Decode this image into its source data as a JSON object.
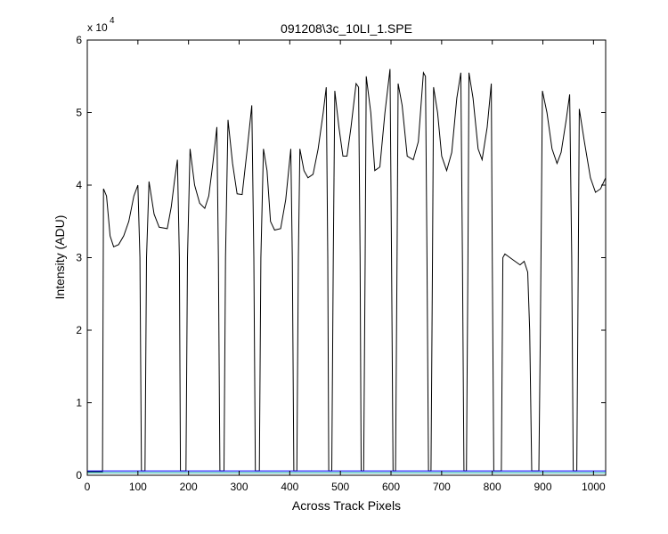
{
  "chart_data": {
    "type": "line",
    "title": "091208\\3c_10LI_1.SPE",
    "xlabel": "Across Track Pixels",
    "ylabel": "Intensity (ADU)",
    "xlim": [
      0,
      1024
    ],
    "ylim": [
      0,
      60000
    ],
    "x_ticks": [
      "0",
      "100",
      "200",
      "300",
      "400",
      "500",
      "600",
      "700",
      "800",
      "900",
      "1000"
    ],
    "y_ticks": [
      "0",
      "1",
      "2",
      "3",
      "4",
      "5",
      "6"
    ],
    "y_exponent": {
      "base": "x 10",
      "power": "4"
    },
    "grid": false,
    "legend": "none",
    "series": [
      {
        "color": "#000000",
        "points": [
          [
            0,
            500
          ],
          [
            30,
            500
          ],
          [
            32,
            39500
          ],
          [
            38,
            38500
          ],
          [
            45,
            33000
          ],
          [
            52,
            31500
          ],
          [
            62,
            31800
          ],
          [
            72,
            33000
          ],
          [
            82,
            35000
          ],
          [
            92,
            38500
          ],
          [
            100,
            40000
          ],
          [
            104,
            30000
          ],
          [
            107,
            600
          ],
          [
            114,
            600
          ],
          [
            117,
            30000
          ],
          [
            122,
            40500
          ],
          [
            132,
            36000
          ],
          [
            142,
            34200
          ],
          [
            158,
            34000
          ],
          [
            166,
            37000
          ],
          [
            172,
            40500
          ],
          [
            178,
            43500
          ],
          [
            182,
            30000
          ],
          [
            184,
            600
          ],
          [
            195,
            600
          ],
          [
            198,
            30000
          ],
          [
            203,
            45000
          ],
          [
            212,
            40000
          ],
          [
            222,
            37500
          ],
          [
            232,
            36800
          ],
          [
            240,
            38500
          ],
          [
            248,
            43000
          ],
          [
            256,
            48000
          ],
          [
            259,
            30000
          ],
          [
            262,
            600
          ],
          [
            270,
            600
          ],
          [
            273,
            30000
          ],
          [
            278,
            49000
          ],
          [
            287,
            43000
          ],
          [
            296,
            38800
          ],
          [
            306,
            38700
          ],
          [
            316,
            45000
          ],
          [
            325,
            51000
          ],
          [
            329,
            30000
          ],
          [
            332,
            600
          ],
          [
            340,
            600
          ],
          [
            343,
            30000
          ],
          [
            348,
            45000
          ],
          [
            355,
            42000
          ],
          [
            362,
            35000
          ],
          [
            370,
            33800
          ],
          [
            382,
            34000
          ],
          [
            392,
            38000
          ],
          [
            402,
            45000
          ],
          [
            405,
            30000
          ],
          [
            408,
            600
          ],
          [
            414,
            600
          ],
          [
            417,
            30000
          ],
          [
            420,
            45000
          ],
          [
            428,
            42000
          ],
          [
            436,
            41000
          ],
          [
            446,
            41500
          ],
          [
            456,
            45000
          ],
          [
            466,
            50000
          ],
          [
            472,
            53500
          ],
          [
            475,
            30000
          ],
          [
            477,
            600
          ],
          [
            483,
            600
          ],
          [
            486,
            30000
          ],
          [
            489,
            53000
          ],
          [
            497,
            48000
          ],
          [
            505,
            44000
          ],
          [
            513,
            44000
          ],
          [
            521,
            48000
          ],
          [
            531,
            54000
          ],
          [
            536,
            53500
          ],
          [
            539,
            30000
          ],
          [
            541,
            600
          ],
          [
            546,
            600
          ],
          [
            549,
            30000
          ],
          [
            551,
            55000
          ],
          [
            560,
            50000
          ],
          [
            568,
            42000
          ],
          [
            578,
            42500
          ],
          [
            588,
            50000
          ],
          [
            598,
            56000
          ],
          [
            601,
            30000
          ],
          [
            604,
            600
          ],
          [
            609,
            600
          ],
          [
            612,
            30000
          ],
          [
            614,
            54000
          ],
          [
            622,
            51000
          ],
          [
            632,
            44000
          ],
          [
            644,
            43500
          ],
          [
            654,
            46000
          ],
          [
            664,
            55500
          ],
          [
            668,
            55000
          ],
          [
            671,
            30000
          ],
          [
            674,
            600
          ],
          [
            679,
            600
          ],
          [
            682,
            30000
          ],
          [
            684,
            53500
          ],
          [
            692,
            50000
          ],
          [
            700,
            44000
          ],
          [
            710,
            42000
          ],
          [
            720,
            44500
          ],
          [
            730,
            52000
          ],
          [
            738,
            55500
          ],
          [
            741,
            30000
          ],
          [
            744,
            600
          ],
          [
            749,
            600
          ],
          [
            752,
            30000
          ],
          [
            754,
            55500
          ],
          [
            762,
            52000
          ],
          [
            772,
            45000
          ],
          [
            780,
            43500
          ],
          [
            790,
            48000
          ],
          [
            798,
            54000
          ],
          [
            800,
            30000
          ],
          [
            803,
            600
          ],
          [
            818,
            600
          ],
          [
            821,
            30000
          ],
          [
            825,
            30500
          ],
          [
            835,
            30000
          ],
          [
            845,
            29500
          ],
          [
            855,
            29000
          ],
          [
            863,
            29500
          ],
          [
            870,
            28000
          ],
          [
            874,
            20000
          ],
          [
            878,
            600
          ],
          [
            892,
            600
          ],
          [
            895,
            20000
          ],
          [
            899,
            53000
          ],
          [
            908,
            50000
          ],
          [
            918,
            45000
          ],
          [
            928,
            43000
          ],
          [
            936,
            44500
          ],
          [
            946,
            49000
          ],
          [
            953,
            52500
          ],
          [
            957,
            30000
          ],
          [
            960,
            600
          ],
          [
            967,
            600
          ],
          [
            970,
            30000
          ],
          [
            972,
            50500
          ],
          [
            982,
            46000
          ],
          [
            994,
            41000
          ],
          [
            1004,
            39000
          ],
          [
            1014,
            39500
          ],
          [
            1024,
            41000
          ]
        ]
      },
      {
        "color": "#0000ff",
        "points": [
          [
            0,
            600
          ],
          [
            1024,
            600
          ]
        ]
      },
      {
        "color": "#00a0a0",
        "points": [
          [
            0,
            350
          ],
          [
            1024,
            350
          ]
        ]
      }
    ]
  }
}
